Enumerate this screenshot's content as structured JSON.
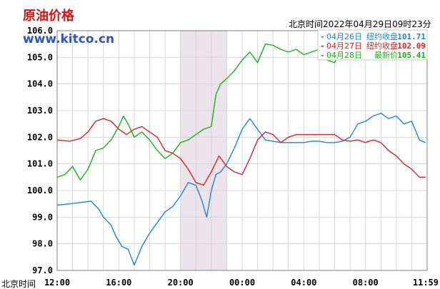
{
  "chart_data": {
    "type": "line",
    "title": "原油价格",
    "source": "www.kitco.cn",
    "timestamp": "北京时间2022年04月29日09时23分",
    "xlabel": "北京时间",
    "x_ticks": [
      "12:00",
      "16:00",
      "20:00",
      "00:00",
      "04:00",
      "08:00",
      "11:59"
    ],
    "y_ticks": [
      "106.0",
      "105.0",
      "104.0",
      "103.0",
      "102.0",
      "101.0",
      "100.0",
      "99.0",
      "98.0",
      "97.0"
    ],
    "ylim": [
      97.0,
      106.0
    ],
    "xlim_hours": [
      0,
      24
    ],
    "highlight_band_hours": [
      8.0,
      11.0
    ],
    "grid": true,
    "legend_placement": "top-right",
    "series": [
      {
        "name": "04月26日",
        "label": "纽约收盘",
        "value": "101.71",
        "color": "#1e82e6",
        "x_hours": [
          0.0,
          0.8,
          1.5,
          2.2,
          2.7,
          3.0,
          3.5,
          3.8,
          4.2,
          4.6,
          5.0,
          5.5,
          6.0,
          6.5,
          7.0,
          7.5,
          8.0,
          8.5,
          9.0,
          9.4,
          9.7,
          10.0,
          10.3,
          10.6,
          11.0,
          11.5,
          12.0,
          12.5,
          13.0,
          13.5,
          14.0,
          14.5,
          15.0,
          15.5,
          16.0,
          16.5,
          17.0,
          17.5,
          18.0,
          18.5,
          19.0,
          19.5,
          20.0,
          20.5,
          21.0,
          21.5,
          22.0,
          22.5,
          23.0,
          23.5,
          23.9
        ],
        "values": [
          99.45,
          99.5,
          99.55,
          99.6,
          99.3,
          99.0,
          98.7,
          98.3,
          97.9,
          97.8,
          97.2,
          97.9,
          98.4,
          98.8,
          99.2,
          99.4,
          99.8,
          100.3,
          100.2,
          99.6,
          99.0,
          100.0,
          100.6,
          100.7,
          101.0,
          101.6,
          102.3,
          102.7,
          102.3,
          101.9,
          101.85,
          101.8,
          101.8,
          101.8,
          101.8,
          101.85,
          101.85,
          101.8,
          101.8,
          101.85,
          102.0,
          102.5,
          102.6,
          102.8,
          102.9,
          102.7,
          102.8,
          102.5,
          102.6,
          101.9,
          101.8
        ]
      },
      {
        "name": "04月27日",
        "label": "纽约收盘",
        "value": "102.09",
        "color": "#e61e1e",
        "x_hours": [
          0.0,
          0.8,
          1.5,
          2.0,
          2.5,
          3.0,
          3.5,
          4.0,
          4.5,
          5.0,
          5.5,
          6.0,
          6.5,
          7.0,
          7.5,
          8.0,
          8.5,
          9.0,
          9.5,
          10.0,
          10.5,
          11.0,
          11.5,
          12.0,
          12.5,
          13.0,
          13.5,
          14.0,
          14.5,
          15.0,
          15.5,
          16.0,
          16.5,
          17.0,
          17.5,
          18.0,
          18.5,
          19.0,
          19.5,
          20.0,
          20.5,
          21.0,
          21.5,
          22.0,
          22.5,
          23.0,
          23.5,
          23.9
        ],
        "values": [
          101.9,
          101.85,
          101.95,
          102.2,
          102.6,
          102.7,
          102.6,
          102.3,
          102.1,
          102.3,
          102.4,
          102.2,
          102.0,
          101.5,
          101.4,
          101.2,
          100.8,
          100.3,
          100.2,
          100.7,
          101.3,
          100.9,
          100.7,
          100.6,
          101.2,
          101.9,
          102.2,
          102.1,
          101.8,
          102.0,
          102.1,
          102.1,
          102.1,
          102.1,
          102.1,
          102.1,
          101.9,
          101.85,
          101.9,
          101.8,
          101.9,
          101.8,
          101.5,
          101.3,
          101.0,
          100.8,
          100.5,
          100.5
        ]
      },
      {
        "name": "04月28日",
        "label": "最新价",
        "value": "105.41",
        "color": "#18b418",
        "x_hours": [
          0.0,
          0.5,
          1.0,
          1.5,
          2.0,
          2.5,
          3.0,
          3.5,
          4.0,
          4.3,
          4.6,
          5.0,
          5.5,
          6.0,
          6.5,
          7.0,
          7.5,
          8.0,
          8.5,
          9.0,
          9.5,
          10.0,
          10.3,
          10.6,
          11.0,
          11.5,
          12.0,
          12.5,
          13.0,
          13.5,
          14.0,
          14.5,
          15.0,
          15.5,
          16.0,
          16.5,
          17.0,
          17.5,
          18.0,
          18.5
        ],
        "values": [
          100.5,
          100.6,
          100.9,
          100.4,
          100.8,
          101.5,
          101.6,
          101.9,
          102.4,
          102.8,
          102.5,
          102.0,
          102.2,
          101.9,
          101.5,
          101.2,
          101.4,
          101.8,
          101.9,
          102.1,
          102.3,
          102.4,
          103.6,
          104.0,
          104.2,
          104.5,
          104.9,
          105.2,
          104.8,
          105.5,
          105.45,
          105.3,
          105.2,
          105.3,
          105.1,
          105.2,
          105.3,
          104.9,
          104.8,
          105.4
        ]
      }
    ]
  }
}
